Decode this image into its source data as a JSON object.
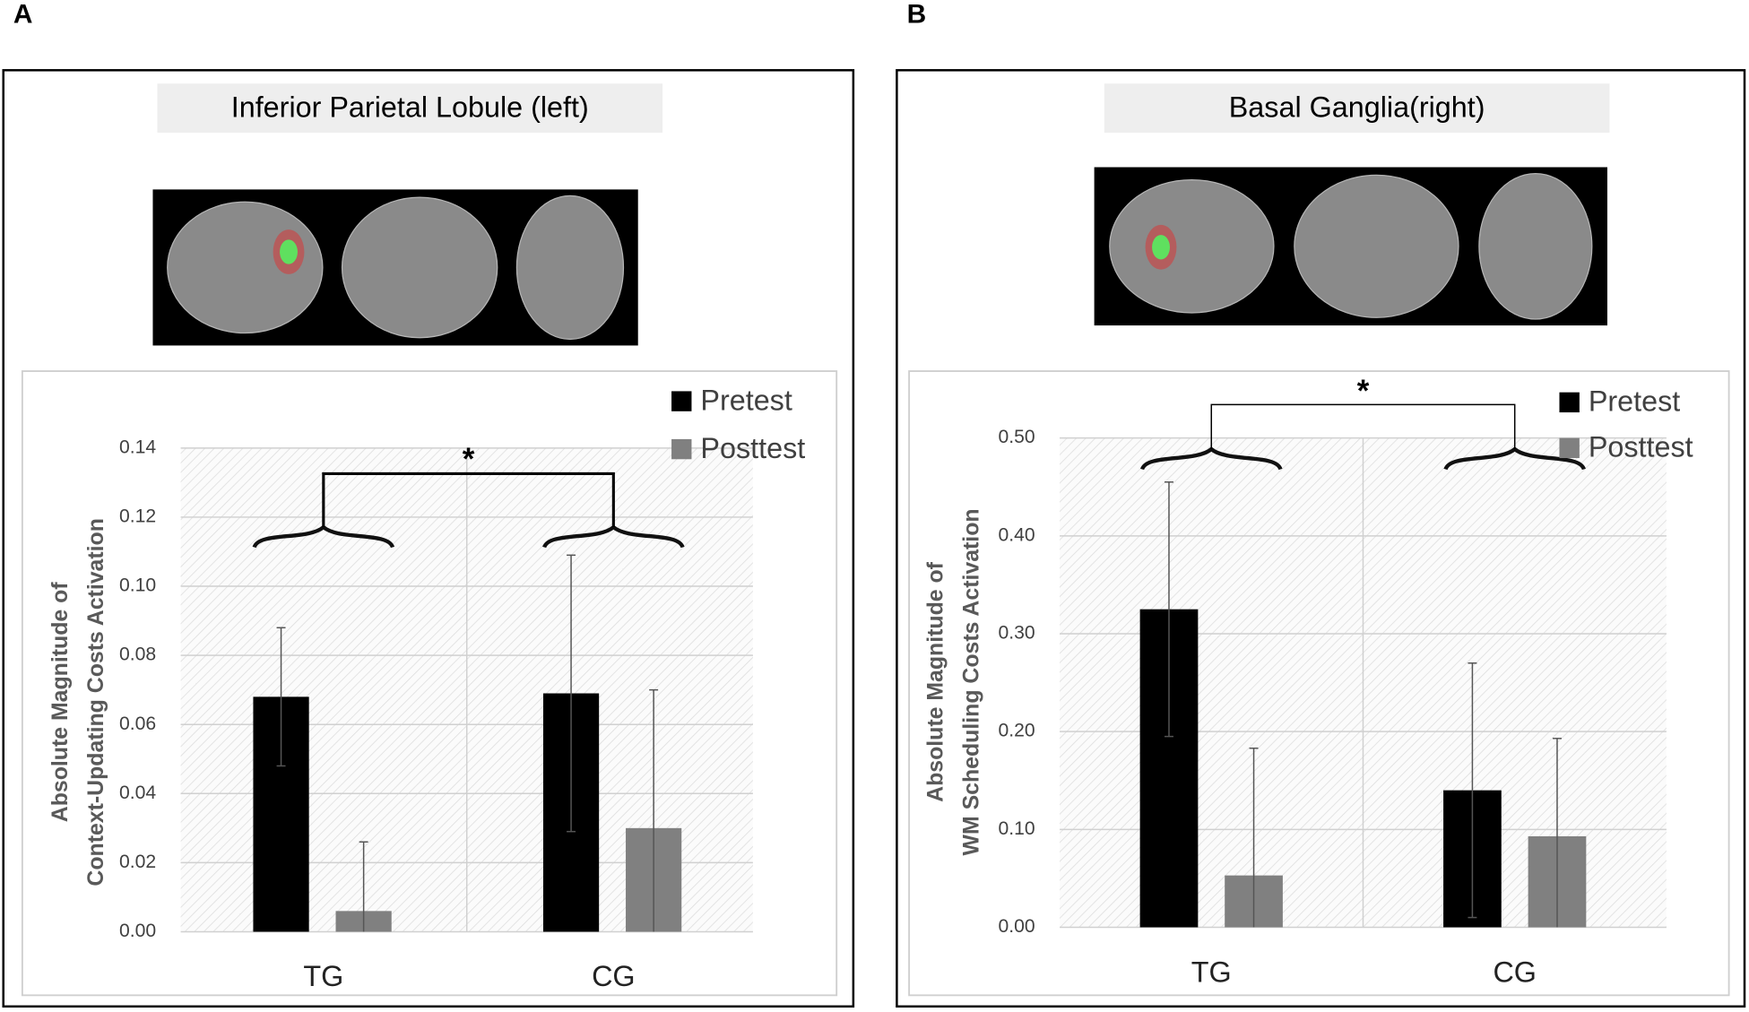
{
  "chart_data": [
    {
      "type": "bar",
      "panel": "A",
      "title": "Inferior Parietal Lobule (left)",
      "y_label": [
        "Absolute Magnitude of",
        "Context-Updating Costs Activation"
      ],
      "categories": [
        "TG",
        "CG"
      ],
      "series": [
        {
          "name": "Pretest",
          "color": "#000000",
          "values": [
            0.068,
            0.069
          ],
          "errors": [
            0.02,
            0.04
          ]
        },
        {
          "name": "Posttest",
          "color": "#808080",
          "values": [
            0.006,
            0.03
          ],
          "errors": [
            0.02,
            0.04
          ]
        }
      ],
      "ylim": [
        0,
        0.14
      ],
      "yticks": [
        {
          "value": 0,
          "label": "0.00"
        },
        {
          "value": 0.02,
          "label": "0.02"
        },
        {
          "value": 0.04,
          "label": "0.04"
        },
        {
          "value": 0.06,
          "label": "0.06"
        },
        {
          "value": 0.08,
          "label": "0.08"
        },
        {
          "value": 0.1,
          "label": "0.10"
        },
        {
          "value": 0.12,
          "label": "0.12"
        },
        {
          "value": 0.14,
          "label": "0.14"
        }
      ],
      "grid": true,
      "annotation": "*"
    },
    {
      "type": "bar",
      "panel": "B",
      "title": "Basal Ganglia(right)",
      "y_label": [
        "Absolute Magnitude of",
        "WM Scheduling Costs Activation"
      ],
      "categories": [
        "TG",
        "CG"
      ],
      "series": [
        {
          "name": "Pretest",
          "color": "#000000",
          "values": [
            0.325,
            0.14
          ],
          "errors": [
            0.13,
            0.13
          ]
        },
        {
          "name": "Posttest",
          "color": "#808080",
          "values": [
            0.053,
            0.093
          ],
          "errors": [
            0.13,
            0.1
          ]
        }
      ],
      "ylim": [
        0,
        0.5
      ],
      "yticks": [
        {
          "value": 0,
          "label": "0.00"
        },
        {
          "value": 0.1,
          "label": "0.10"
        },
        {
          "value": 0.2,
          "label": "0.20"
        },
        {
          "value": 0.3,
          "label": "0.30"
        },
        {
          "value": 0.4,
          "label": "0.40"
        },
        {
          "value": 0.5,
          "label": "0.50"
        }
      ],
      "grid": true,
      "annotation": "*"
    }
  ]
}
